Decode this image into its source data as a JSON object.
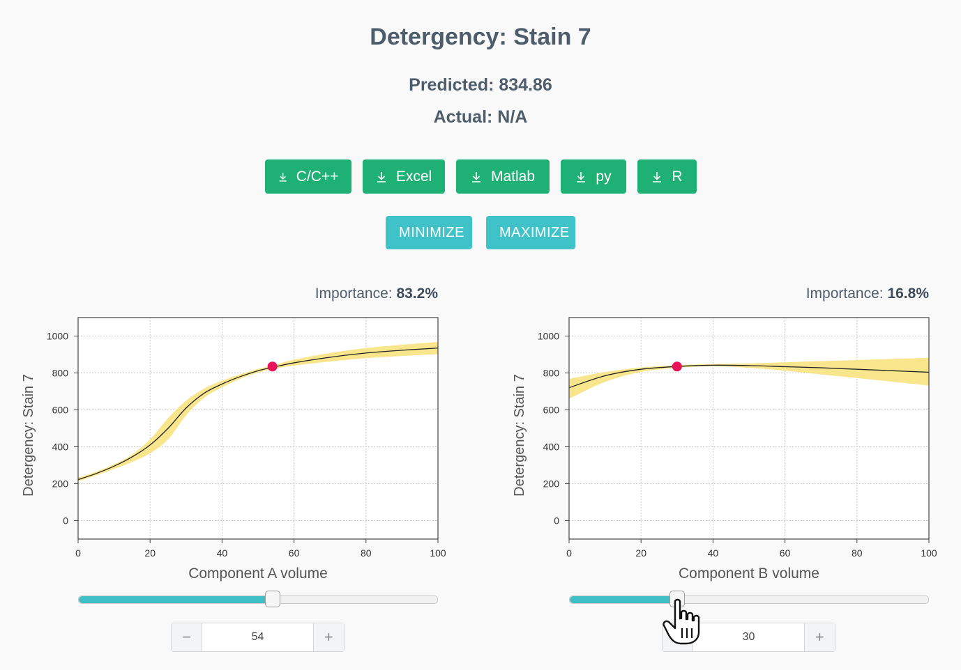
{
  "title": "Detergency: Stain 7",
  "predicted": "Predicted: 834.86",
  "actual": "Actual: N/A",
  "downloads": [
    {
      "label": "C/C++",
      "name": "download-cpp-button"
    },
    {
      "label": "Excel",
      "name": "download-excel-button"
    },
    {
      "label": "Matlab",
      "name": "download-matlab-button"
    },
    {
      "label": "py",
      "name": "download-py-button"
    },
    {
      "label": "R",
      "name": "download-r-button"
    }
  ],
  "optimize": {
    "minimize": "MINIMIZE",
    "maximize": "MAXIMIZE"
  },
  "colors": {
    "green": "#1fb075",
    "teal": "#3fc2c8",
    "band": "#f8e58c",
    "marker": "#e8125a"
  },
  "panels": [
    {
      "importance_label": "Importance:",
      "importance_value": "83.2%",
      "stepper_value": "54",
      "slider_fraction": 0.54
    },
    {
      "importance_label": "Importance:",
      "importance_value": "16.8%",
      "stepper_value": "30",
      "slider_fraction": 0.3
    }
  ],
  "stepper": {
    "minus": "−",
    "plus": "+"
  },
  "chart_data": [
    {
      "type": "line",
      "xlabel": "Component A volume",
      "ylabel": "Detergency: Stain 7",
      "xlim": [
        0,
        100
      ],
      "ylim": [
        -100,
        1100
      ],
      "xticks": [
        0,
        20,
        40,
        60,
        80,
        100
      ],
      "yticks": [
        0,
        200,
        400,
        600,
        800,
        1000
      ],
      "grid": true,
      "x": [
        0,
        5,
        10,
        15,
        20,
        25,
        30,
        35,
        40,
        45,
        50,
        54,
        60,
        70,
        80,
        90,
        100
      ],
      "y": [
        222,
        255,
        295,
        345,
        410,
        500,
        610,
        690,
        740,
        780,
        812,
        830,
        855,
        885,
        908,
        923,
        935
      ],
      "band_upper": [
        232,
        265,
        305,
        358,
        440,
        555,
        650,
        715,
        758,
        792,
        822,
        840,
        872,
        908,
        935,
        953,
        968
      ],
      "band_lower": [
        212,
        245,
        280,
        318,
        365,
        440,
        570,
        665,
        722,
        768,
        802,
        820,
        840,
        862,
        880,
        892,
        902
      ],
      "marker": {
        "x": 54,
        "y": 834.86
      }
    },
    {
      "type": "line",
      "xlabel": "Component B volume",
      "ylabel": "Detergency: Stain 7",
      "xlim": [
        0,
        100
      ],
      "ylim": [
        -100,
        1100
      ],
      "xticks": [
        0,
        20,
        40,
        60,
        80,
        100
      ],
      "yticks": [
        0,
        200,
        400,
        600,
        800,
        1000
      ],
      "grid": true,
      "x": [
        0,
        10,
        20,
        30,
        40,
        50,
        60,
        70,
        80,
        90,
        100
      ],
      "y": [
        720,
        785,
        820,
        835,
        842,
        840,
        834,
        828,
        820,
        812,
        804
      ],
      "band_upper": [
        768,
        805,
        830,
        842,
        848,
        852,
        858,
        864,
        870,
        876,
        882
      ],
      "band_lower": [
        660,
        752,
        805,
        828,
        836,
        828,
        812,
        792,
        772,
        752,
        732
      ],
      "marker": {
        "x": 30,
        "y": 834.86
      }
    }
  ]
}
